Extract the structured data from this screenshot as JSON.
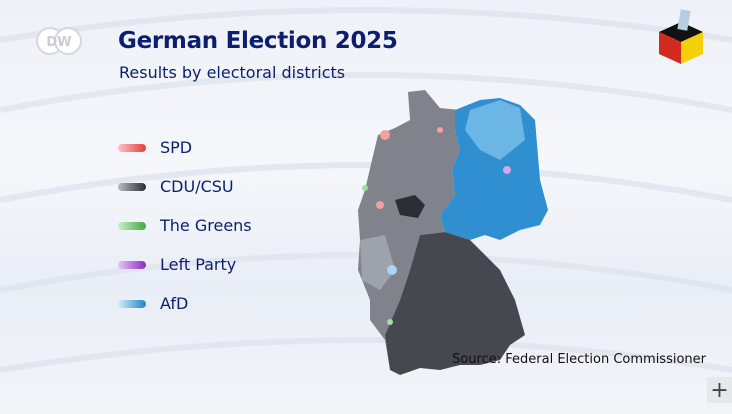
{
  "header": {
    "title": "German Election 2025",
    "subtitle": "Results by electoral districts",
    "logo_text": "DW"
  },
  "legend": [
    {
      "label": "SPD",
      "color": "#e83c3c"
    },
    {
      "label": "CDU/CSU",
      "color": "#2a2d33"
    },
    {
      "label": "The Greens",
      "color": "#3faa3f"
    },
    {
      "label": "Left Party",
      "color": "#8a2cc0"
    },
    {
      "label": "AfD",
      "color": "#1a86c6"
    }
  ],
  "source": "Source: Federal Election Commissioner",
  "controls": {
    "expand_label": "+"
  }
}
